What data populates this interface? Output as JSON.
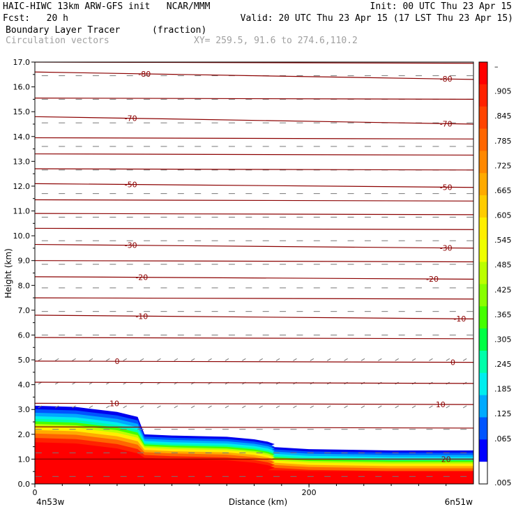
{
  "header": {
    "title_left": "HAIC-HIWC 13km ARW-GFS init   NCAR/MMM",
    "init": "Init: 00 UTC Thu 23 Apr 15",
    "fcst": "Fcst:   20 h",
    "valid": "Valid: 20 UTC Thu 23 Apr 15 (17 LST Thu 23 Apr 15)",
    "field_name": "Boundary Layer Tracer",
    "field_units": "(fraction)",
    "vector_label": "Circulation vectors",
    "xy_label": "XY= 259.5, 91.6 to 274.6,110.2"
  },
  "axes": {
    "ylabel": "Height (km)",
    "xlabel": "Distance (km)",
    "left_label": "4n53w",
    "right_label": "6n51w",
    "x_ticks": [
      "0",
      "200"
    ],
    "y_ticks": [
      "0.0",
      "1.0",
      "2.0",
      "3.0",
      "4.0",
      "5.0",
      "6.0",
      "7.0",
      "8.0",
      "9.0",
      "10.0",
      "11.0",
      "12.0",
      "13.0",
      "14.0",
      "15.0",
      "16.0",
      "17.0"
    ]
  },
  "colorbar": {
    "labels": [
      "–",
      ".905",
      ".845",
      ".785",
      ".725",
      ".665",
      ".605",
      ".545",
      ".485",
      ".425",
      ".365",
      ".305",
      ".245",
      ".185",
      ".125",
      ".065",
      ".005"
    ],
    "colors": [
      "#ff0000",
      "#ff2200",
      "#ff4400",
      "#ff6600",
      "#ff8800",
      "#ffaa00",
      "#ffcc00",
      "#ffee00",
      "#eeff00",
      "#bbff00",
      "#88ff00",
      "#44ff00",
      "#00ff44",
      "#00ffaa",
      "#00eeee",
      "#00aaff",
      "#0055ff",
      "#0000ff",
      "#ffffff"
    ]
  },
  "chart_data": {
    "type": "cross-section",
    "title": "Boundary Layer Tracer",
    "units": "(fraction)",
    "xlabel": "Distance (km)",
    "ylabel": "Height (km)",
    "xlim": [
      0,
      320
    ],
    "ylim": [
      0,
      17
    ],
    "shading_top_km": [
      [
        0,
        3.15
      ],
      [
        30,
        3.1
      ],
      [
        60,
        2.9
      ],
      [
        75,
        2.7
      ],
      [
        80,
        2.0
      ],
      [
        100,
        1.95
      ],
      [
        140,
        1.9
      ],
      [
        160,
        1.8
      ],
      [
        170,
        1.7
      ],
      [
        175,
        1.6
      ],
      [
        170,
        1.5
      ],
      [
        200,
        1.4
      ],
      [
        260,
        1.35
      ],
      [
        320,
        1.35
      ]
    ],
    "temperature_contours": [
      {
        "label": "-80",
        "x": 0,
        "y0": 16.6,
        "y1": 16.3
      },
      {
        "label": "-70",
        "x": 0,
        "y0": 14.8,
        "y1": 14.5
      },
      {
        "label": "-50",
        "x": 0,
        "y0": 12.1,
        "y1": 11.95
      },
      {
        "label": "-30",
        "x": 0,
        "y0": 9.65,
        "y1": 9.5
      },
      {
        "label": "-20",
        "x": 0,
        "y0": 8.35,
        "y1": 8.25
      },
      {
        "label": "-10",
        "x": 0,
        "y0": 6.8,
        "y1": 6.65
      },
      {
        "label": "0",
        "x": 0,
        "y0": 4.95,
        "y1": 4.9
      },
      {
        "label": "10",
        "x": 0,
        "y0": 3.25,
        "y1": 3.2
      },
      {
        "label": "20",
        "x": 0,
        "y0": 1.0,
        "y1": 1.0
      }
    ],
    "contour_label_positions": [
      {
        "label": "-80",
        "xs": [
          80,
          300
        ]
      },
      {
        "label": "-70",
        "xs": [
          70,
          300
        ]
      },
      {
        "label": "-50",
        "xs": [
          70,
          300
        ]
      },
      {
        "label": "-30",
        "xs": [
          70,
          300
        ]
      },
      {
        "label": "-20",
        "xs": [
          78,
          290
        ]
      },
      {
        "label": "-10",
        "xs": [
          78,
          310
        ]
      },
      {
        "label": "0",
        "xs": [
          60,
          305
        ]
      },
      {
        "label": "10",
        "xs": [
          58,
          296
        ]
      },
      {
        "label": "20",
        "xs": [
          300
        ]
      }
    ],
    "unlabeled_contour_heights_km": [
      17.0,
      15.55,
      13.95,
      13.3,
      12.7,
      11.45,
      10.9,
      10.3,
      9.0,
      7.5,
      5.9,
      4.1,
      2.3
    ]
  }
}
